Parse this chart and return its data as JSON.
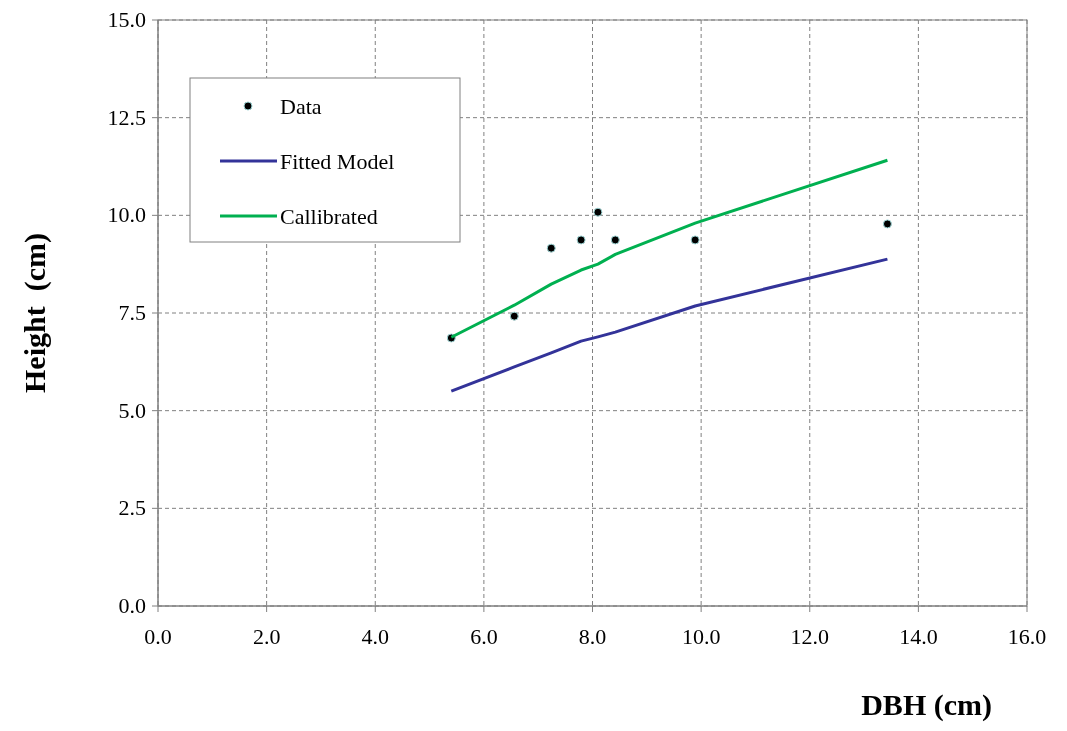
{
  "chart_data": {
    "type": "line",
    "xlabel": "DBH (cm)",
    "ylabel": "Height  (cm)",
    "xlim": [
      0,
      16
    ],
    "ylim": [
      0,
      15
    ],
    "xticks": [
      {
        "value": 0,
        "label": "0.0"
      },
      {
        "value": 2,
        "label": "2.0"
      },
      {
        "value": 4,
        "label": "4.0"
      },
      {
        "value": 6,
        "label": "6.0"
      },
      {
        "value": 8,
        "label": "8.0"
      },
      {
        "value": 10,
        "label": "10.0"
      },
      {
        "value": 12,
        "label": "12.0"
      },
      {
        "value": 14,
        "label": "14.0"
      },
      {
        "value": 16,
        "label": "16.0"
      }
    ],
    "yticks": [
      {
        "value": 0,
        "label": "0.0"
      },
      {
        "value": 2.5,
        "label": "2.5"
      },
      {
        "value": 5,
        "label": "5.0"
      },
      {
        "value": 7.5,
        "label": "7.5"
      },
      {
        "value": 10,
        "label": "10.0"
      },
      {
        "value": 12.5,
        "label": "12.5"
      },
      {
        "value": 15,
        "label": "15.0"
      }
    ],
    "grid": true,
    "legend": "top left",
    "series": [
      {
        "name": "Data",
        "type": "scatter",
        "marker": "circle",
        "color": "#000000",
        "x": [
          5.4,
          6.56,
          7.24,
          7.79,
          8.1,
          8.42,
          9.89,
          13.43
        ],
        "values": [
          6.86,
          7.42,
          9.16,
          9.37,
          10.08,
          9.37,
          9.37,
          9.78
        ]
      },
      {
        "name": "Fitted Model",
        "color": "#333399",
        "x": [
          5.4,
          6.56,
          7.24,
          7.79,
          8.1,
          8.42,
          9.89,
          13.43
        ],
        "values": [
          5.5,
          6.12,
          6.48,
          6.78,
          6.89,
          7.01,
          7.68,
          8.88
        ]
      },
      {
        "name": "Callibrated",
        "color": "#00b050",
        "x": [
          5.4,
          6.56,
          7.24,
          7.79,
          8.1,
          8.42,
          9.89,
          13.43
        ],
        "values": [
          6.88,
          7.7,
          8.24,
          8.6,
          8.75,
          9.0,
          9.8,
          11.41
        ]
      }
    ]
  }
}
